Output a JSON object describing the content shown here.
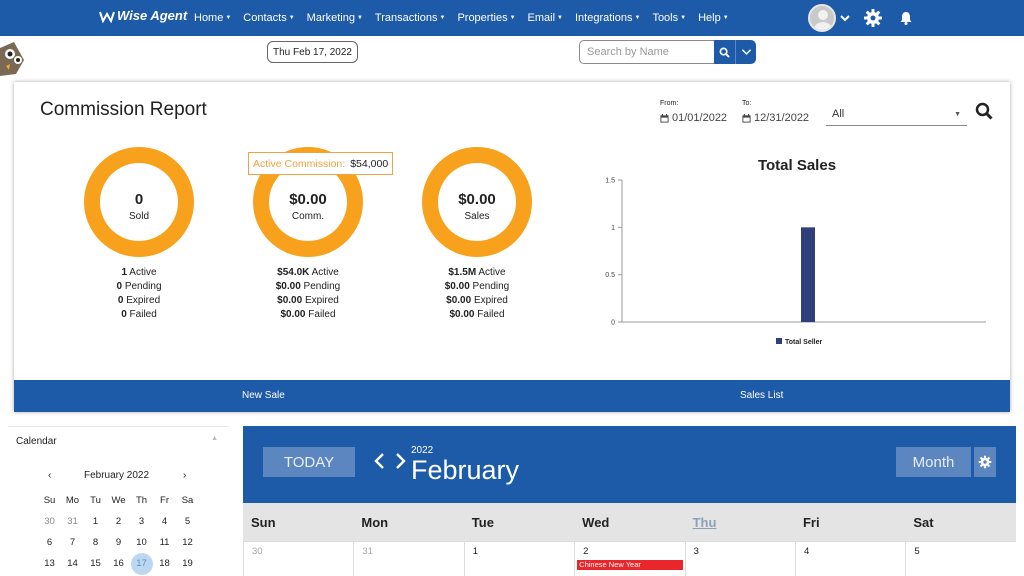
{
  "app": {
    "logo_text": "Wise Agent"
  },
  "nav": {
    "items": [
      {
        "label": "Home"
      },
      {
        "label": "Contacts"
      },
      {
        "label": "Marketing"
      },
      {
        "label": "Transactions"
      },
      {
        "label": "Properties"
      },
      {
        "label": "Email"
      },
      {
        "label": "Integrations"
      },
      {
        "label": "Tools"
      },
      {
        "label": "Help"
      }
    ]
  },
  "toolbar": {
    "date": "Thu Feb 17, 2022",
    "search_placeholder": "Search by Name"
  },
  "report": {
    "title": "Commission Report",
    "from_label": "From:",
    "from_value": "01/01/2022",
    "to_label": "To:",
    "to_value": "12/31/2022",
    "filter_value": "All",
    "tooltip_key": "Active Commission:",
    "tooltip_value": "$54,000",
    "donuts": [
      {
        "value": "0",
        "label": "Sold",
        "stats": [
          {
            "num": "1",
            "text": "Active"
          },
          {
            "num": "0",
            "text": "Pending"
          },
          {
            "num": "0",
            "text": "Expired"
          },
          {
            "num": "0",
            "text": "Failed"
          }
        ]
      },
      {
        "value": "$0.00",
        "label": "Comm.",
        "stats": [
          {
            "num": "$54.0K",
            "text": "Active"
          },
          {
            "num": "$0.00",
            "text": "Pending"
          },
          {
            "num": "$0.00",
            "text": "Expired"
          },
          {
            "num": "$0.00",
            "text": "Failed"
          }
        ]
      },
      {
        "value": "$0.00",
        "label": "Sales",
        "stats": [
          {
            "num": "$1.5M",
            "text": "Active"
          },
          {
            "num": "$0.00",
            "text": "Pending"
          },
          {
            "num": "$0.00",
            "text": "Expired"
          },
          {
            "num": "$0.00",
            "text": "Failed"
          }
        ]
      }
    ],
    "footer_new_sale": "New Sale",
    "footer_sales_list": "Sales List"
  },
  "chart_data": {
    "type": "bar",
    "title": "Total Sales",
    "series": [
      {
        "name": "Total Seller",
        "values": [
          1
        ]
      }
    ],
    "categories": [
      ""
    ],
    "yticks": [
      "0",
      "0.5",
      "1",
      "1.5"
    ],
    "ylim": [
      0,
      1.5
    ],
    "grid": false,
    "legend": "bottom-center",
    "colors": {
      "bar": "#2e3f7c"
    }
  },
  "calendar_side": {
    "title": "Calendar",
    "month_title": "February 2022",
    "prev": "‹",
    "next": "›",
    "dow": [
      "Su",
      "Mo",
      "Tu",
      "We",
      "Th",
      "Fr",
      "Sa"
    ],
    "weeks": [
      [
        "30",
        "31",
        "1",
        "2",
        "3",
        "4",
        "5"
      ],
      [
        "6",
        "7",
        "8",
        "9",
        "10",
        "11",
        "12"
      ],
      [
        "13",
        "14",
        "15",
        "16",
        "17",
        "18",
        "19"
      ]
    ],
    "muted_days": [
      "30",
      "31"
    ],
    "today": "17"
  },
  "calendar_main": {
    "today_label": "TODAY",
    "year": "2022",
    "month": "February",
    "view_label": "Month",
    "dow": [
      "Sun",
      "Mon",
      "Tue",
      "Wed",
      "Thu",
      "Fri",
      "Sat"
    ],
    "current_dow": "Thu",
    "days": [
      "30",
      "31",
      "1",
      "2",
      "3",
      "4",
      "5"
    ],
    "muted_days": [
      "30",
      "31"
    ],
    "event": {
      "day": "2",
      "label": "Chinese New Year",
      "color": "#e8262c"
    }
  },
  "colors": {
    "brand_blue": "#1d5aa8",
    "donut_orange": "#f7a11d",
    "button_blue": "#5c86c0"
  }
}
